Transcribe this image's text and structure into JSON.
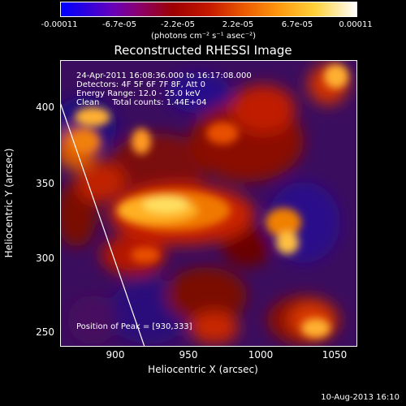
{
  "colorbar": {
    "ticks": [
      "-0.00011",
      "-6.7e-05",
      "-2.2e-05",
      "2.2e-05",
      "6.7e-05",
      "0.00011"
    ],
    "units": "(photons cm⁻² s⁻¹ asec⁻²)"
  },
  "title": "Reconstructed RHESSI Image",
  "info": {
    "line1": "24-Apr-2011 16:08:36.000 to 16:17:08.000",
    "line2": "Detectors: 4F 5F 6F 7F 8F, Att 0",
    "line3": "Energy Range: 12.0 - 25.0 keV",
    "line4": "Clean     Total counts: 1.44E+04"
  },
  "peak": "Position of Peak = [930,333]",
  "axes": {
    "xlabel": "Heliocentric X (arcsec)",
    "ylabel": "Heliocentric Y (arcsec)",
    "xticks": [
      "900",
      "950",
      "1000",
      "1050"
    ],
    "yticks": [
      "400",
      "350",
      "300",
      "250"
    ],
    "xlim": [
      865,
      1055
    ],
    "ylim": [
      237,
      420
    ]
  },
  "timestamp": "10-Aug-2013 16:10",
  "colors": {
    "background": "#000000",
    "text": "#ffffff"
  }
}
